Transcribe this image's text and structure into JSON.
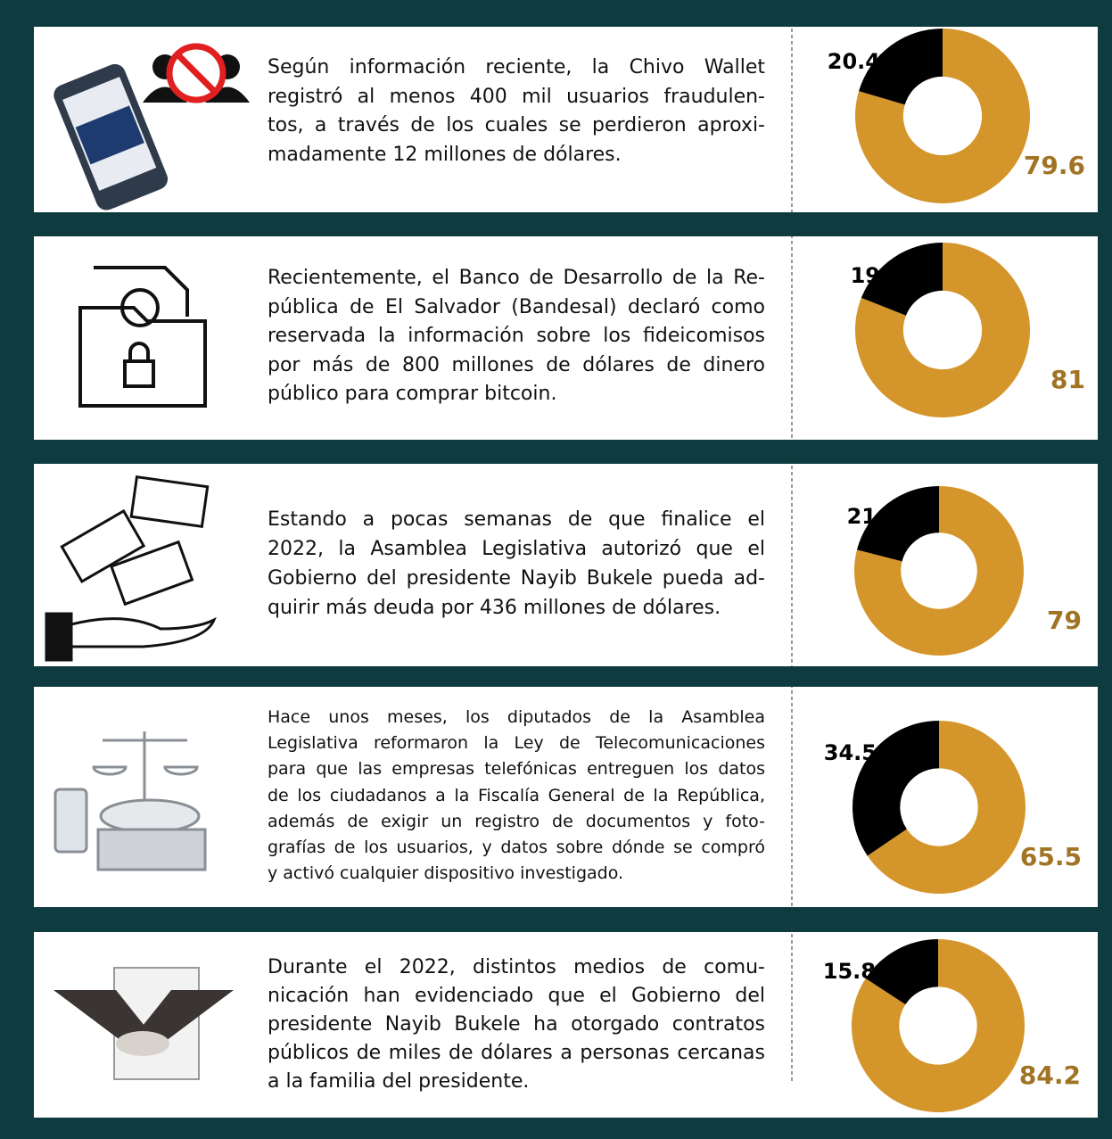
{
  "rows": [
    {
      "lines": [
        "Según información reciente, la Chivo Wallet",
        "registró al menos 400 mil usuarios fraudulen-",
        "tos, a través de los cuales se perdieron aproxi-",
        "madamente 12 millones de dólares."
      ]
    },
    {
      "lines": [
        "Recientemente, el Banco de Desarrollo de la Re-",
        "pública de El Salvador (Bandesal) declaró como",
        "reservada la información sobre los fideicomisos",
        "por más de 800 millones de dólares de dinero",
        "público para comprar bitcoin."
      ]
    },
    {
      "lines": [
        "Estando a pocas semanas de que finalice el",
        "2022, la Asamblea Legislativa autorizó que el",
        "Gobierno del presidente Nayib Bukele pueda ad-",
        "quirir más deuda por 436 millones de dólares."
      ]
    },
    {
      "lines": [
        "Hace unos meses, los diputados de la Asamblea",
        "Legislativa reformaron la Ley de Telecomunicaciones",
        "para que las empresas telefónicas entreguen los datos",
        "de los ciudadanos a la Fiscalía General de la República,",
        "además de exigir un registro de documentos y foto-",
        "grafías de los usuarios, y datos sobre dónde se compró",
        "y activó cualquier dispositivo investigado."
      ]
    },
    {
      "lines": [
        "Durante el 2022, distintos medios de comu-",
        "nicación han evidenciado que el Gobierno del",
        "presidente Nayib Bukele ha otorgado contratos",
        "públicos de miles de dólares a personas cercanas",
        "a la familia del presidente."
      ]
    }
  ],
  "chart_data": [
    {
      "type": "donut",
      "values": [
        20.4,
        79.6
      ],
      "colors": [
        "#000000",
        "#d4952a"
      ]
    },
    {
      "type": "donut",
      "values": [
        19,
        81
      ],
      "colors": [
        "#000000",
        "#d4952a"
      ]
    },
    {
      "type": "donut",
      "values": [
        21,
        79
      ],
      "colors": [
        "#000000",
        "#d4952a"
      ]
    },
    {
      "type": "donut",
      "values": [
        34.5,
        65.5
      ],
      "colors": [
        "#000000",
        "#d4952a"
      ]
    },
    {
      "type": "donut",
      "values": [
        15.8,
        84.2
      ],
      "colors": [
        "#000000",
        "#d4952a"
      ]
    }
  ]
}
